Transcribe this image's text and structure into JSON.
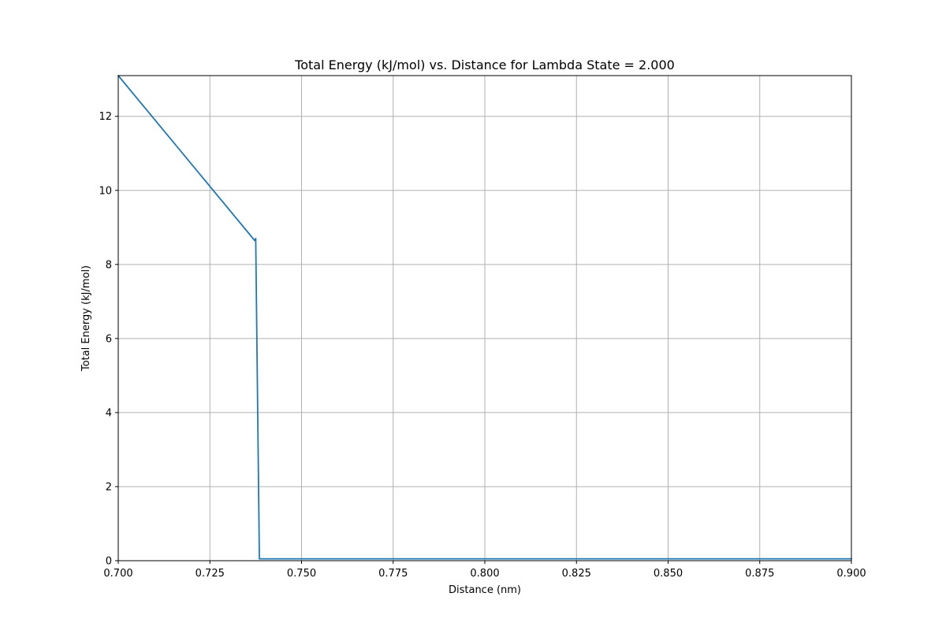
{
  "chart_data": {
    "type": "line",
    "title": "Total Energy (kJ/mol) vs. Distance for Lambda State = 2.000",
    "xlabel": "Distance (nm)",
    "ylabel": "Total Energy (kJ/mol)",
    "xlim": [
      0.7,
      0.9
    ],
    "ylim": [
      0,
      13.1
    ],
    "x_ticks": [
      0.7,
      0.725,
      0.75,
      0.775,
      0.8,
      0.825,
      0.85,
      0.875,
      0.9
    ],
    "x_tick_labels": [
      "0.700",
      "0.725",
      "0.750",
      "0.775",
      "0.800",
      "0.825",
      "0.850",
      "0.875",
      "0.900"
    ],
    "y_ticks": [
      0,
      2,
      4,
      6,
      8,
      10,
      12
    ],
    "y_tick_labels": [
      "0",
      "2",
      "4",
      "6",
      "8",
      "10",
      "12"
    ],
    "grid": true,
    "legend": false,
    "colors": {
      "line": "#1f77b4",
      "grid": "#b0b0b0"
    },
    "series": [
      {
        "x": [
          0.7,
          0.7372,
          0.7375,
          0.7385,
          0.9
        ],
        "y": [
          13.1,
          8.65,
          8.7,
          0.05,
          0.05
        ]
      }
    ]
  }
}
